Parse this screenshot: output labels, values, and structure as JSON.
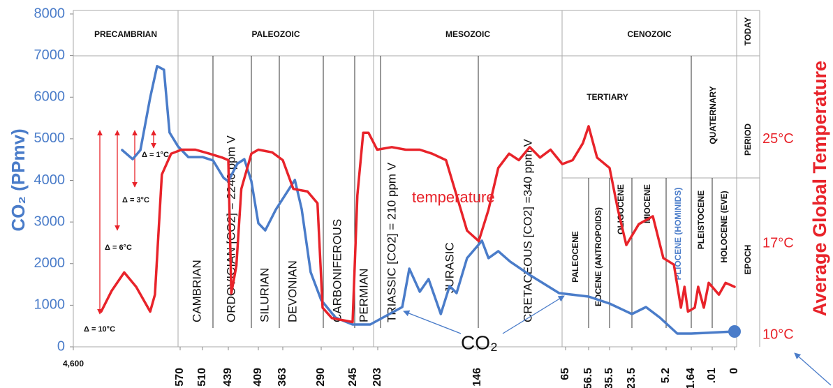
{
  "chart_data": {
    "type": "line",
    "ylabel": "CO₂ (PPmv)",
    "y2label": "Average Global Temperature",
    "ylim": [
      0,
      8000
    ],
    "yticks": [
      0,
      1000,
      2000,
      3000,
      4000,
      5000,
      6000,
      7000,
      8000
    ],
    "y2lim": [
      9.1,
      34.6
    ],
    "y2ticks": [
      {
        "value": 10,
        "label": "10°C"
      },
      {
        "value": 17,
        "label": "17°C"
      },
      {
        "value": 25,
        "label": "25°C"
      }
    ],
    "xlim": [
      4600,
      0
    ],
    "xticks": [
      {
        "value": 4600,
        "label": "4,600"
      },
      570,
      510,
      439,
      409,
      363,
      290,
      245,
      203,
      146,
      65,
      56.5,
      35.5,
      23.5,
      5.2,
      1.64,
      {
        "value": 0.01,
        "label": ".01"
      },
      0
    ],
    "series": [
      {
        "name": "CO₂",
        "color": "#4a7cc9",
        "x": [
          2760,
          2360,
          2070,
          1700,
          1440,
          1180,
          970,
          650,
          548,
          510,
          481,
          452,
          439,
          430,
          423,
          416,
          409,
          396,
          376,
          340,
          327,
          310,
          290,
          270,
          246,
          216,
          189,
          185,
          179,
          174,
          167,
          162,
          158,
          152,
          142,
          136,
          127,
          116,
          97,
          71,
          56.5,
          35.5,
          23.5,
          16,
          8.6,
          3.62,
          1.64,
          0
        ],
        "values": [
          4730,
          4510,
          4730,
          5990,
          6745,
          6660,
          5150,
          4815,
          4560,
          4560,
          4480,
          4060,
          3980,
          4400,
          4510,
          3980,
          2970,
          2800,
          3300,
          4010,
          3305,
          1795,
          1124,
          705,
          537,
          537,
          956,
          1879,
          1325,
          1628,
          789,
          1460,
          1292,
          2131,
          2550,
          2131,
          2299,
          2047,
          1711,
          1292,
          1208,
          1040,
          789,
          956,
          705,
          319,
          319,
          369
        ]
      },
      {
        "name": "temperature",
        "color": "#e8232a",
        "axis": "y2",
        "x": [
          3550,
          3150,
          2680,
          2230,
          1700,
          1520,
          1260,
          910,
          566,
          529,
          491,
          456,
          439,
          436,
          431,
          426,
          416,
          409,
          383,
          363,
          343,
          316,
          297,
          288,
          275,
          246,
          238,
          228,
          219,
          204,
          195,
          187,
          179,
          172,
          164,
          158,
          152,
          145,
          136,
          127,
          117,
          108,
          98,
          88.5,
          78.8,
          68,
          62.4,
          58.6,
          56.5,
          48,
          35.5,
          31,
          26.5,
          19.8,
          12.3,
          6.7,
          4.1,
          3.1,
          2.6,
          2.1,
          1.37,
          1.1,
          0.66,
          0.28,
          0.007,
          0.004,
          0
        ],
        "values": [
          11.8,
          13.4,
          14.8,
          13.7,
          11.8,
          13.1,
          22.3,
          23.9,
          24.2,
          24.2,
          23.9,
          23.6,
          23.4,
          13.2,
          15.3,
          21.2,
          23.9,
          24.2,
          24.0,
          23.4,
          21.2,
          21.0,
          20.1,
          12.1,
          11.3,
          11.0,
          20.7,
          25.5,
          25.5,
          24.2,
          24.4,
          24.2,
          24.2,
          23.9,
          23.4,
          20.7,
          18.0,
          17.2,
          19.6,
          22.8,
          23.9,
          23.4,
          24.4,
          23.6,
          24.2,
          23.1,
          23.4,
          24.7,
          26.0,
          23.6,
          22.8,
          19.6,
          16.9,
          18.5,
          19.1,
          15.9,
          15.4,
          12.1,
          13.7,
          11.8,
          12.1,
          13.7,
          12.1,
          14.0,
          13.1,
          14.0,
          13.7
        ]
      }
    ],
    "eras": [
      "PRECAMBRIAN",
      "PALEOZOIC",
      "MESOZOIC",
      "CENOZOIC"
    ],
    "column_labels": [
      "TODAY",
      "PERIOD",
      "EPOCH"
    ],
    "periods": [
      "CAMBRIAN",
      "ORDOVICIAN [CO2] = 2240 ppm V",
      "SILURIAN",
      "DEVONIAN",
      "CARBONIFEROUS",
      "PERMIAN",
      "TRIASSIC [CO2] = 210 ppm V",
      "JURASIC",
      "CRETACEOUS [CO2] =340 ppm V"
    ],
    "tertiary": "TERTIARY",
    "quaternary": "QUATERNARY",
    "epochs": [
      "PALEOCENE",
      "EOCENE (ANTROPOIDS)",
      "OLIGOCENE",
      "MIOCENE",
      "PLIOCENE (HOMINIDS)",
      "PLEISTOCENE",
      "HOLOCENE (EVE)"
    ],
    "deltas": [
      "Δ = 1°C",
      "Δ = 3°C",
      "Δ = 6°C",
      "Δ = 10°C"
    ]
  }
}
